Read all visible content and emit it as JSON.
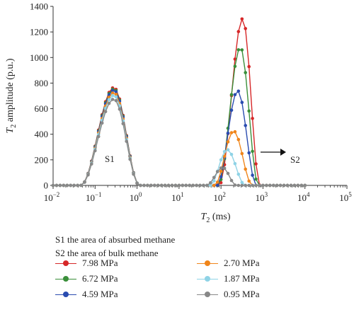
{
  "chart_data": {
    "type": "line",
    "title": "",
    "xscale": "log",
    "xlim": [
      0.01,
      100000
    ],
    "ylim": [
      0,
      1400
    ],
    "x_ticks": [
      0.01,
      0.1,
      1,
      10,
      100,
      1000,
      10000,
      100000
    ],
    "x_tick_labels": [
      [
        "10",
        "−2"
      ],
      [
        "10",
        "−1"
      ],
      [
        "10",
        "0"
      ],
      [
        "10",
        "1"
      ],
      [
        "10",
        "2"
      ],
      [
        "10",
        "3"
      ],
      [
        "10",
        "4"
      ],
      [
        "10",
        "5"
      ]
    ],
    "y_ticks": [
      0,
      200,
      400,
      600,
      800,
      1000,
      1200,
      1400
    ],
    "y_tick_labels": [
      "0",
      "200",
      "400",
      "600",
      "800",
      "1000",
      "1200",
      "1400"
    ],
    "xlabel": {
      "symbol": "T",
      "sub": "2",
      "unit": " (ms)"
    },
    "ylabel": {
      "symbol": "T",
      "sub": "2",
      "rest": " amplitude (p.u.)"
    },
    "grid": false,
    "legend_position": "bottom",
    "annotations": {
      "s1": "S1",
      "s2": "S2"
    },
    "series": [
      {
        "name": "7.98 MPa",
        "color": "#d62728",
        "peak1": {
          "amp": 765,
          "center": 0.28
        },
        "peak2": {
          "amp": 1305,
          "center": 330,
          "lo": 90,
          "hi": 850
        }
      },
      {
        "name": "6.72 MPa",
        "color": "#3a8f3a",
        "peak1": {
          "amp": 755,
          "center": 0.28
        },
        "peak2": {
          "amp": 1080,
          "center": 290,
          "lo": 85,
          "hi": 780
        }
      },
      {
        "name": "4.59 MPa",
        "color": "#2a4cb0",
        "peak1": {
          "amp": 745,
          "center": 0.28
        },
        "peak2": {
          "amp": 740,
          "center": 250,
          "lo": 80,
          "hi": 700
        }
      },
      {
        "name": "2.70 MPa",
        "color": "#f0851a",
        "peak1": {
          "amp": 725,
          "center": 0.28
        },
        "peak2": {
          "amp": 425,
          "center": 200,
          "lo": 70,
          "hi": 560
        }
      },
      {
        "name": "1.87 MPa",
        "color": "#8fd3e6",
        "peak1": {
          "amp": 705,
          "center": 0.28
        },
        "peak2": {
          "amp": 280,
          "center": 140,
          "lo": 55,
          "hi": 380
        }
      },
      {
        "name": "0.95 MPa",
        "color": "#888888",
        "peak1": {
          "amp": 675,
          "center": 0.28
        },
        "peak2": {
          "amp": 140,
          "center": 110,
          "lo": 45,
          "hi": 230
        }
      }
    ]
  },
  "notes": {
    "s1": "S1 the area of absurbed methane",
    "s2": "S2 the area of bulk methane"
  }
}
